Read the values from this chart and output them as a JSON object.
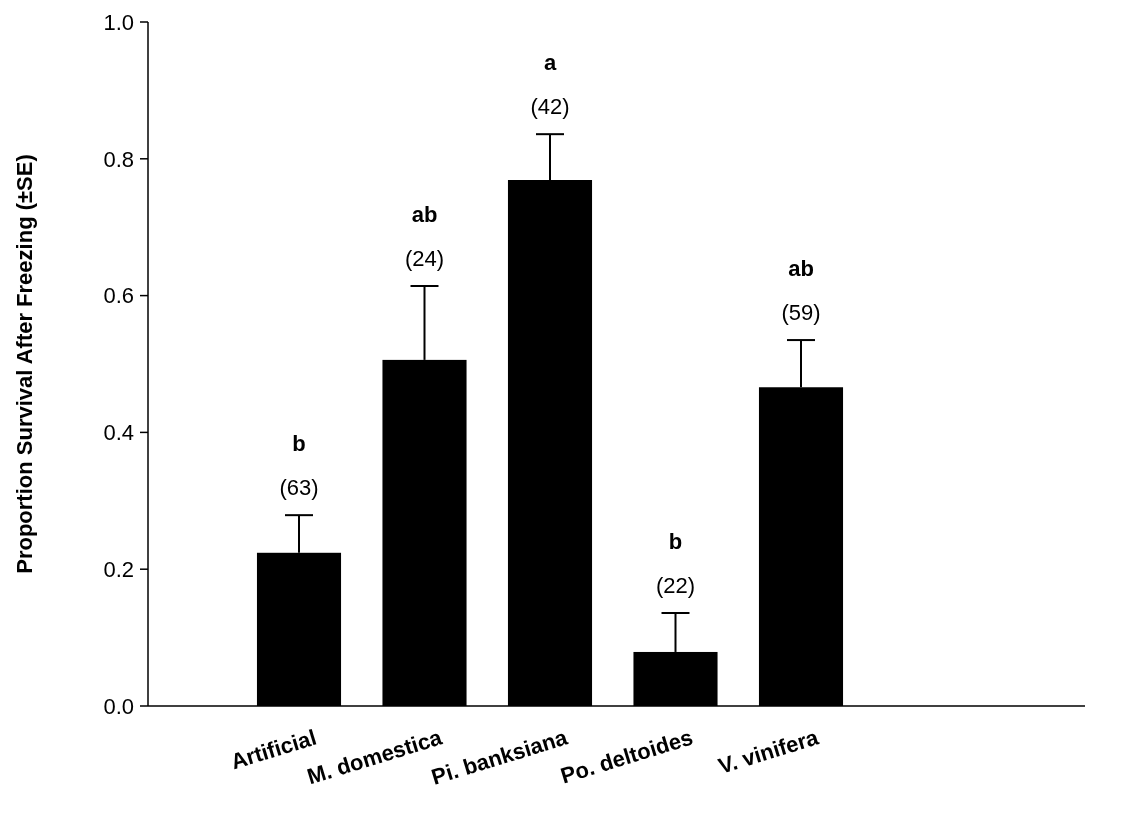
{
  "chart_data": {
    "type": "bar",
    "ylabel": "Proportion Survival After Freezing (±SE)",
    "categories": [
      "Artificial",
      "M. domestica",
      "Pi. banksiana",
      "Po. deltoides",
      "V. vinifera"
    ],
    "values": [
      0.224,
      0.506,
      0.769,
      0.079,
      0.466
    ],
    "errors": [
      [
        0.224,
        0.279
      ],
      [
        0.506,
        0.614
      ],
      [
        0.769,
        0.836
      ],
      [
        0.079,
        0.136
      ],
      [
        0.466,
        0.535
      ]
    ],
    "color": "#000000",
    "ylim": [
      0,
      1
    ],
    "yticks": [
      {
        "value": 0,
        "label": "0.0"
      },
      0.2,
      0.4,
      0.6,
      0.8,
      {
        "value": 1,
        "label": "1.0"
      }
    ],
    "grid": false,
    "annotations": [
      "b",
      "(63)",
      "ab",
      "(24)",
      "a",
      "(42)",
      "b",
      "(22)",
      "ab",
      "(59)"
    ]
  }
}
